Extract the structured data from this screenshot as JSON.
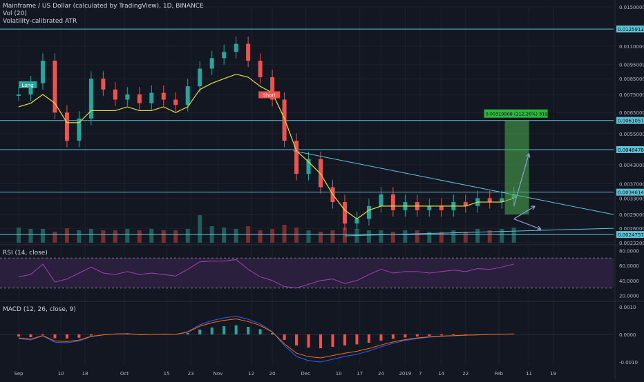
{
  "header": {
    "title": "Mainframe / US Dollar (calculated by TradingView), 1D, BINANCE",
    "volume": "Vol (20)",
    "atr": "Volatility-calibrated ATR"
  },
  "rsi": {
    "label": "RSI (14, close)",
    "ticks": [
      "80.0000",
      "60.0000",
      "40.0000",
      "20.0000"
    ]
  },
  "macd": {
    "label": "MACD (12, 26, close, 9)",
    "ticks": [
      "0.0010",
      "0.0000",
      "-0.0010"
    ]
  },
  "colors": {
    "background": "#131722",
    "up": "#26a69a",
    "down": "#ef5350",
    "ma": "#e8e13a",
    "hline": "#5fc3d6",
    "rsi": "#9c44b0",
    "projection": "#4caf50",
    "arrow": "#8aa4d8"
  },
  "chart_data": {
    "type": "candlestick",
    "y_scale": "log",
    "price_ticks": [
      "0.01500000",
      "0.01100000",
      "0.00950000",
      "0.00850000",
      "0.00750000",
      "0.00650000",
      "0.00550000",
      "0.00430000",
      "0.00370000",
      "0.00330000",
      "0.00290000",
      "0.00260000",
      "0.00232000"
    ],
    "x_ticks": [
      "Sep",
      "10",
      "18",
      "Oct",
      "15",
      "23",
      "Nov",
      "12",
      "20",
      "Dec",
      "10",
      "17",
      "24",
      "2019",
      "7",
      "14",
      "22",
      "Feb",
      "11",
      "19"
    ],
    "price_labels": [
      {
        "text": "0.01259136",
        "value": 0.01259136
      },
      {
        "text": "0.00610576",
        "value": 0.00610576
      },
      {
        "text": "0.00484788",
        "value": 0.00484788
      },
      {
        "text": "0.00346146",
        "value": 0.00346146
      },
      {
        "text": "0.00247570",
        "value": 0.0024757
      }
    ],
    "horizontal_lines": [
      0.01259136,
      0.00610576,
      0.00484788,
      0.00346146,
      0.0024757
    ],
    "signals": [
      {
        "text": "Long",
        "date": "2018-08-30",
        "price": 0.0078
      },
      {
        "text": "Short",
        "date": "2018-11-18",
        "price": 0.0072
      }
    ],
    "measure_label": "0.00319908 (112.26%) 319908",
    "series": [
      {
        "name": "price",
        "dates": [
          "2018-08-27",
          "2018-08-31",
          "2018-09-04",
          "2018-09-08",
          "2018-09-12",
          "2018-09-16",
          "2018-09-20",
          "2018-09-24",
          "2018-09-28",
          "2018-10-02",
          "2018-10-06",
          "2018-10-10",
          "2018-10-14",
          "2018-10-18",
          "2018-10-22",
          "2018-10-26",
          "2018-10-30",
          "2018-11-03",
          "2018-11-07",
          "2018-11-11",
          "2018-11-15",
          "2018-11-19",
          "2018-11-23",
          "2018-11-27",
          "2018-12-01",
          "2018-12-05",
          "2018-12-09",
          "2018-12-13",
          "2018-12-17",
          "2018-12-21",
          "2018-12-25",
          "2018-12-29",
          "2019-01-02",
          "2019-01-06",
          "2019-01-10",
          "2019-01-14",
          "2019-01-18",
          "2019-01-22",
          "2019-01-26",
          "2019-01-30",
          "2019-02-03",
          "2019-02-07"
        ],
        "values": [
          0.0075,
          0.0082,
          0.0098,
          0.0065,
          0.0052,
          0.0062,
          0.0085,
          0.0078,
          0.0072,
          0.0075,
          0.007,
          0.0076,
          0.0072,
          0.0069,
          0.008,
          0.0092,
          0.01,
          0.0105,
          0.0112,
          0.0098,
          0.0086,
          0.0072,
          0.0052,
          0.004,
          0.0045,
          0.0036,
          0.0032,
          0.0027,
          0.0028,
          0.0031,
          0.0034,
          0.003,
          0.0032,
          0.003,
          0.0031,
          0.003,
          0.0032,
          0.0031,
          0.0033,
          0.0032,
          0.0033,
          0.0034
        ]
      },
      {
        "name": "ma",
        "values": [
          0.0068,
          0.007,
          0.0075,
          0.007,
          0.006,
          0.006,
          0.0066,
          0.0066,
          0.0066,
          0.0068,
          0.0066,
          0.0066,
          0.0068,
          0.0065,
          0.0068,
          0.0078,
          0.0082,
          0.0085,
          0.0088,
          0.0086,
          0.008,
          0.0076,
          0.0062,
          0.0048,
          0.0044,
          0.004,
          0.0034,
          0.003,
          0.0028,
          0.003,
          0.0031,
          0.0031,
          0.0031,
          0.0031,
          0.0031,
          0.0031,
          0.0031,
          0.0031,
          0.0032,
          0.0032,
          0.0032,
          0.0033
        ]
      },
      {
        "name": "volume",
        "values": [
          22,
          20,
          20,
          16,
          21,
          18,
          20,
          18,
          18,
          20,
          18,
          20,
          18,
          18,
          20,
          40,
          24,
          22,
          20,
          24,
          18,
          20,
          26,
          22,
          18,
          16,
          18,
          22,
          20,
          18,
          18,
          16,
          18,
          18,
          16,
          16,
          18,
          16,
          20,
          18,
          20,
          22
        ]
      },
      {
        "name": "rsi",
        "values": [
          45,
          48,
          62,
          38,
          42,
          50,
          58,
          50,
          48,
          52,
          48,
          50,
          48,
          46,
          55,
          65,
          66,
          66,
          68,
          55,
          45,
          40,
          32,
          30,
          35,
          40,
          42,
          36,
          40,
          48,
          55,
          50,
          52,
          52,
          50,
          52,
          54,
          52,
          56,
          55,
          58,
          62
        ]
      },
      {
        "name": "macd",
        "values": [
          -0.00015,
          -0.0002,
          -5e-05,
          -0.00028,
          -0.0003,
          -0.00024,
          -8e-05,
          -2e-05,
          2e-05,
          3e-05,
          -1e-05,
          0.0,
          1e-05,
          0.0,
          0.0001,
          0.00035,
          0.0005,
          0.0006,
          0.00066,
          0.00055,
          0.00038,
          0.0001,
          -0.0004,
          -0.0008,
          -0.00095,
          -0.001,
          -0.0009,
          -0.0008,
          -0.00072,
          -0.0006,
          -0.00045,
          -0.00032,
          -0.00022,
          -0.00015,
          -0.0001,
          -7e-05,
          -5e-05,
          -3e-05,
          -2e-05,
          0.0,
          1e-05,
          2e-05
        ]
      }
    ]
  }
}
